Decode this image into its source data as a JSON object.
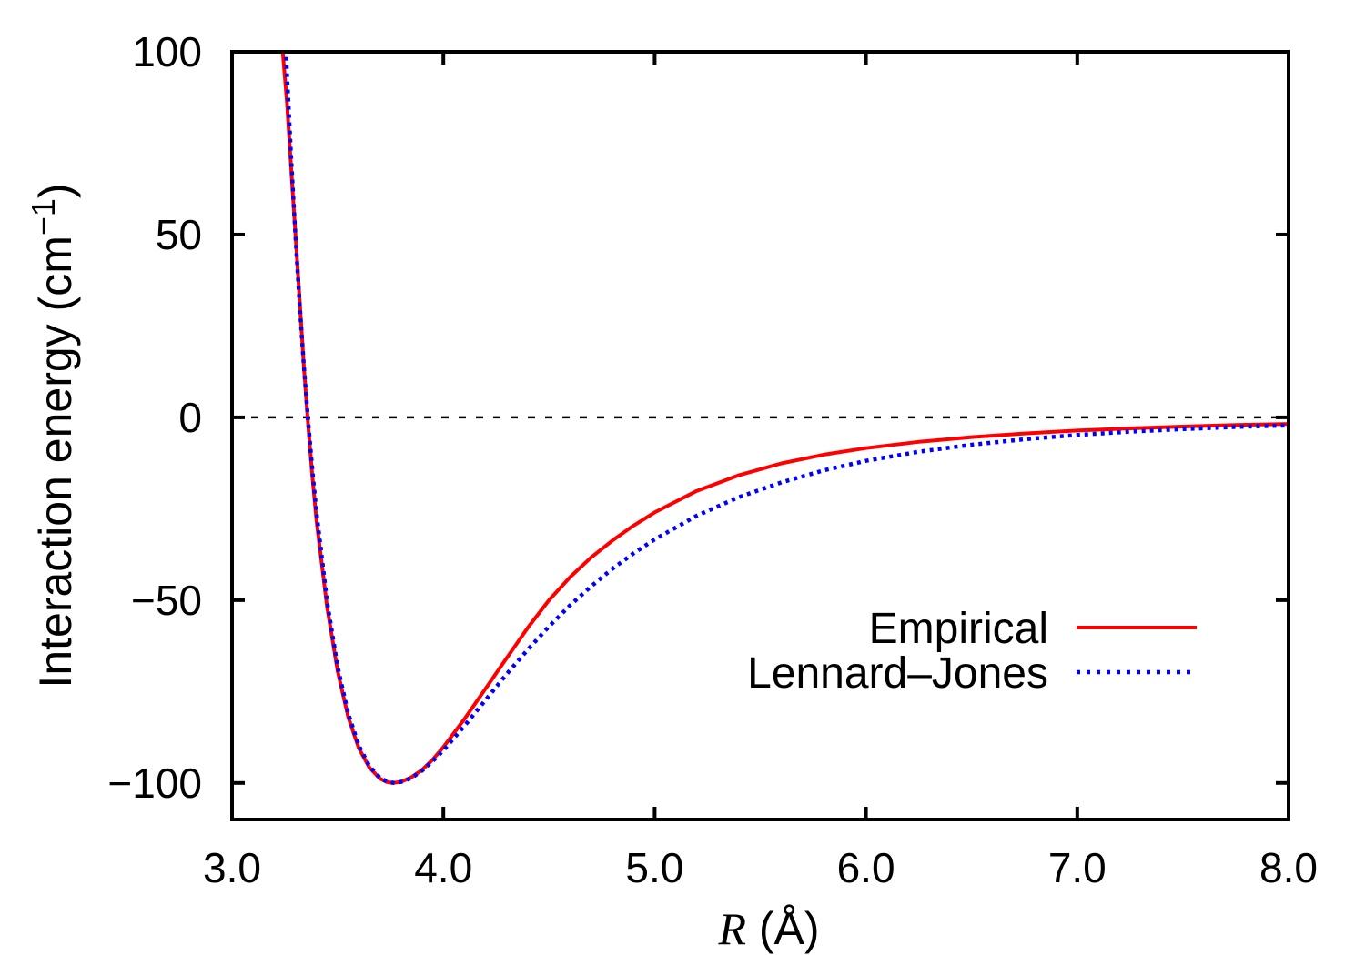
{
  "figure": {
    "background": "#ffffff",
    "title_y_main": "Interaction energy (cm",
    "title_y_sup": "−1",
    "title_y_close": ")",
    "title_x_var": "R",
    "title_x_rest": " (Å)"
  },
  "chart_data": {
    "type": "line",
    "title": "",
    "xlabel": "R (Å)",
    "ylabel": "Interaction energy (cm⁻¹)",
    "xlim": [
      3.0,
      8.0
    ],
    "ylim": [
      -110,
      100
    ],
    "grid": false,
    "zero_line": true,
    "legend_position": "inside right, mid-lower",
    "x_ticks": [
      "3.0",
      "4.0",
      "5.0",
      "6.0",
      "7.0",
      "8.0"
    ],
    "x_tick_values": [
      3.0,
      4.0,
      5.0,
      6.0,
      7.0,
      8.0
    ],
    "y_ticks": [
      "100",
      "50",
      "0",
      "−50",
      "−100"
    ],
    "y_tick_values": [
      100,
      50,
      0,
      -50,
      -100
    ],
    "series": [
      {
        "name": "Empirical",
        "color": "#ff0000",
        "style": "solid",
        "well_depth": -100,
        "minimum_R": 3.76,
        "zero_crossing_R": 3.34,
        "points": [
          [
            3.222,
            114
          ],
          [
            3.24,
            100
          ],
          [
            3.26,
            86
          ],
          [
            3.28,
            68
          ],
          [
            3.3,
            50
          ],
          [
            3.32,
            32
          ],
          [
            3.34,
            14
          ],
          [
            3.36,
            -2
          ],
          [
            3.38,
            -16
          ],
          [
            3.4,
            -28.5
          ],
          [
            3.45,
            -52
          ],
          [
            3.5,
            -69.5
          ],
          [
            3.55,
            -82
          ],
          [
            3.6,
            -90.5
          ],
          [
            3.65,
            -95.8
          ],
          [
            3.7,
            -98.8
          ],
          [
            3.73,
            -99.7
          ],
          [
            3.76,
            -100
          ],
          [
            3.8,
            -99.7
          ],
          [
            3.85,
            -98.4
          ],
          [
            3.9,
            -96.4
          ],
          [
            3.95,
            -93.6
          ],
          [
            4.0,
            -90.2
          ],
          [
            4.1,
            -82.5
          ],
          [
            4.2,
            -74.2
          ],
          [
            4.3,
            -65.8
          ],
          [
            4.4,
            -57.5
          ],
          [
            4.5,
            -50.0
          ],
          [
            4.6,
            -43.7
          ],
          [
            4.7,
            -38.3
          ],
          [
            4.8,
            -33.7
          ],
          [
            4.9,
            -29.6
          ],
          [
            5.0,
            -26.0
          ],
          [
            5.2,
            -20.1
          ],
          [
            5.4,
            -15.8
          ],
          [
            5.6,
            -12.6
          ],
          [
            5.8,
            -10.2
          ],
          [
            6.0,
            -8.4
          ],
          [
            6.25,
            -6.7
          ],
          [
            6.5,
            -5.4
          ],
          [
            6.75,
            -4.4
          ],
          [
            7.0,
            -3.6
          ],
          [
            7.25,
            -3.0
          ],
          [
            7.5,
            -2.5
          ],
          [
            7.75,
            -2.1
          ],
          [
            8.0,
            -1.8
          ]
        ]
      },
      {
        "name": "Lennard–Jones",
        "color": "#0000ff",
        "style": "dotted",
        "well_depth": -100,
        "minimum_R": 3.77,
        "zero_crossing_R": 3.36,
        "points": [
          [
            3.243,
            112
          ],
          [
            3.25,
            106.4
          ],
          [
            3.26,
            93.7
          ],
          [
            3.28,
            70.5
          ],
          [
            3.3,
            49.6
          ],
          [
            3.32,
            30.8
          ],
          [
            3.34,
            14.1
          ],
          [
            3.36,
            -1.0
          ],
          [
            3.38,
            -14.3
          ],
          [
            3.4,
            -26.3
          ],
          [
            3.45,
            -50.6
          ],
          [
            3.5,
            -68.4
          ],
          [
            3.55,
            -81.1
          ],
          [
            3.6,
            -89.8
          ],
          [
            3.65,
            -95.4
          ],
          [
            3.7,
            -98.6
          ],
          [
            3.74,
            -99.8
          ],
          [
            3.77,
            -100
          ],
          [
            3.81,
            -99.6
          ],
          [
            3.85,
            -98.6
          ],
          [
            3.9,
            -96.6
          ],
          [
            3.95,
            -94.0
          ],
          [
            4.0,
            -91.1
          ],
          [
            4.1,
            -84.4
          ],
          [
            4.2,
            -77.3
          ],
          [
            4.3,
            -70.2
          ],
          [
            4.4,
            -63.5
          ],
          [
            4.5,
            -57.2
          ],
          [
            4.6,
            -51.4
          ],
          [
            4.7,
            -46.2
          ],
          [
            4.8,
            -41.4
          ],
          [
            4.9,
            -37.2
          ],
          [
            5.0,
            -33.4
          ],
          [
            5.2,
            -26.9
          ],
          [
            5.4,
            -21.8
          ],
          [
            5.6,
            -17.8
          ],
          [
            5.8,
            -14.5
          ],
          [
            6.0,
            -11.9
          ],
          [
            6.25,
            -9.4
          ],
          [
            6.5,
            -7.5
          ],
          [
            6.75,
            -6.0
          ],
          [
            7.0,
            -4.8
          ],
          [
            7.25,
            -3.9
          ],
          [
            7.5,
            -3.2
          ],
          [
            7.75,
            -2.6
          ],
          [
            8.0,
            -2.2
          ]
        ]
      }
    ]
  }
}
